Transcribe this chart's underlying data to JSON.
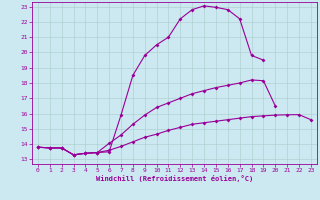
{
  "background_color": "#cce8f0",
  "grid_color": "#aacccc",
  "line_color": "#990099",
  "xlim_min": -0.5,
  "xlim_max": 23.5,
  "ylim_min": 12.7,
  "ylim_max": 23.3,
  "xticks": [
    0,
    1,
    2,
    3,
    4,
    5,
    6,
    7,
    8,
    9,
    10,
    11,
    12,
    13,
    14,
    15,
    16,
    17,
    18,
    19,
    20,
    21,
    22,
    23
  ],
  "yticks": [
    13,
    14,
    15,
    16,
    17,
    18,
    19,
    20,
    21,
    22,
    23
  ],
  "xlabel": "Windchill (Refroidissement éolien,°C)",
  "curve1_x": [
    0,
    1,
    2,
    3,
    4,
    5,
    6,
    7,
    8,
    9,
    10,
    11,
    12,
    13,
    14,
    15,
    16,
    17,
    18,
    19
  ],
  "curve1_y": [
    13.8,
    13.75,
    13.75,
    13.3,
    13.4,
    13.45,
    13.5,
    15.9,
    18.5,
    19.8,
    20.5,
    21.0,
    22.2,
    22.8,
    23.05,
    22.95,
    22.8,
    22.2,
    19.8,
    19.5
  ],
  "curve2_x": [
    0,
    1,
    2,
    3,
    4,
    5,
    6,
    7,
    8,
    9,
    10,
    11,
    12,
    13,
    14,
    15,
    16,
    17,
    18,
    19,
    20
  ],
  "curve2_y": [
    13.8,
    13.75,
    13.75,
    13.3,
    13.4,
    13.45,
    14.05,
    14.6,
    15.3,
    15.9,
    16.4,
    16.7,
    17.0,
    17.3,
    17.5,
    17.7,
    17.85,
    18.0,
    18.2,
    18.15,
    16.5
  ],
  "curve3_x": [
    0,
    1,
    2,
    3,
    4,
    5,
    6,
    7,
    8,
    9,
    10,
    11,
    12,
    13,
    14,
    15,
    16,
    17,
    18,
    19,
    20,
    21,
    22,
    23
  ],
  "curve3_y": [
    13.8,
    13.75,
    13.75,
    13.3,
    13.4,
    13.45,
    13.6,
    13.85,
    14.15,
    14.45,
    14.65,
    14.9,
    15.1,
    15.3,
    15.4,
    15.5,
    15.6,
    15.7,
    15.8,
    15.85,
    15.9,
    15.92,
    15.93,
    15.6
  ]
}
